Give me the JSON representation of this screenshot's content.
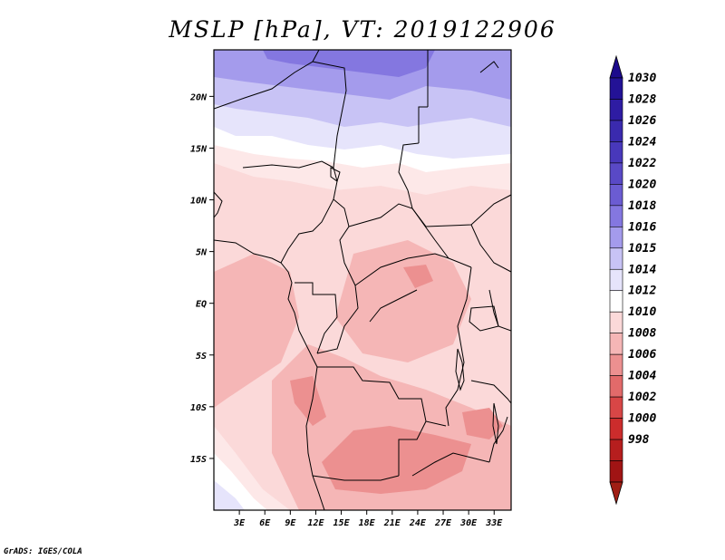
{
  "title": "MSLP [hPa], VT: 2019122906",
  "credit": "GrADS: IGES/COLA",
  "map": {
    "type": "filled-contour-map",
    "variable": "MSLP",
    "units": "hPa",
    "valid_time": "2019122906",
    "lon_labels": [
      "3E",
      "6E",
      "9E",
      "12E",
      "15E",
      "18E",
      "21E",
      "24E",
      "27E",
      "30E",
      "33E"
    ],
    "lat_labels": [
      "20N",
      "15N",
      "10N",
      "5N",
      "EQ",
      "5S",
      "10S",
      "15S"
    ],
    "lon_values": [
      3,
      6,
      9,
      12,
      15,
      18,
      21,
      24,
      27,
      30,
      33
    ],
    "lat_values": [
      20,
      15,
      10,
      5,
      0,
      -5,
      -10,
      -15
    ],
    "lon_range": [
      0,
      35
    ],
    "lat_range": [
      -20,
      24.5
    ]
  },
  "colorbar": {
    "labels": [
      "1030",
      "1028",
      "1026",
      "1024",
      "1022",
      "1020",
      "1018",
      "1016",
      "1015",
      "1014",
      "1012",
      "1010",
      "1008",
      "1006",
      "1004",
      "1002",
      "1000",
      "998"
    ],
    "colors": {
      "top_arrow": "#1c0a8c",
      "bottom_arrow": "#a01e14",
      "bands": [
        "#231296",
        "#2e1ca3",
        "#3a2aae",
        "#4838bb",
        "#5949c6",
        "#6b5cd2",
        "#8477e0",
        "#a49bec",
        "#c8c3f5",
        "#e6e4fb",
        "#ffffff",
        "#fbd9d9",
        "#f5b6b6",
        "#ec9090",
        "#e26a6a",
        "#d84646",
        "#cc2c2c",
        "#b61e1e",
        "#a01414"
      ]
    }
  }
}
